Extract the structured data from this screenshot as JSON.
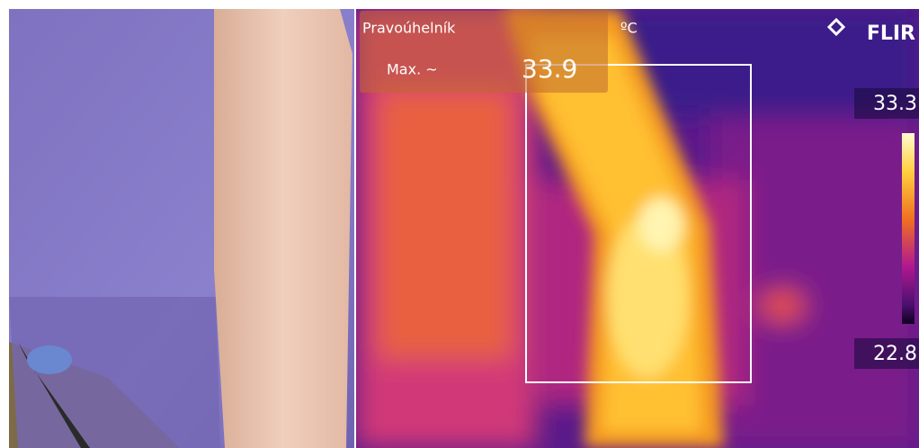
{
  "thermal": {
    "measurement": {
      "label": "Pravoúhelník",
      "stat": "Max. ~",
      "value": 33.9
    },
    "unit": "ºC",
    "brand": "FLIR",
    "scale": {
      "max": 33.3,
      "min": 22.8
    }
  }
}
